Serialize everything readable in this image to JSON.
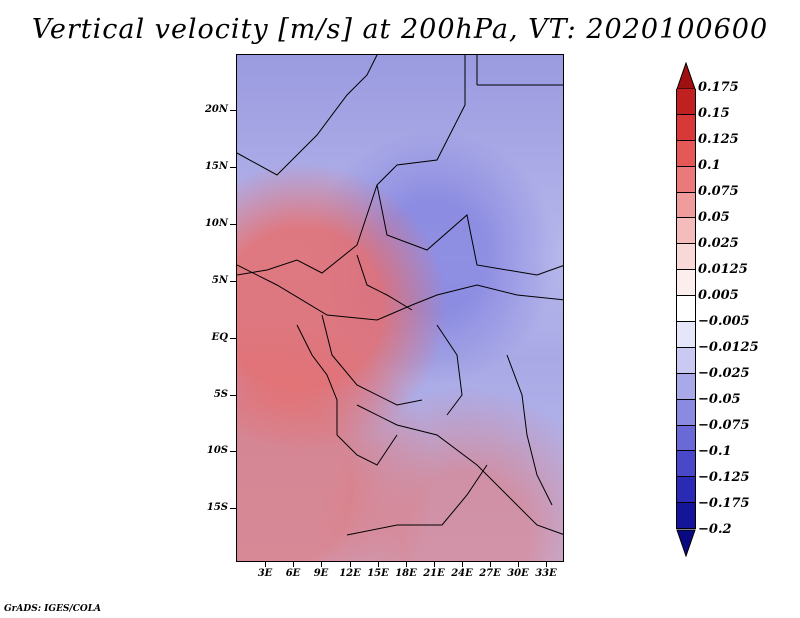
{
  "title": "Vertical velocity [m/s] at 200hPa, VT: 2020100600",
  "lat_labels": [
    "20N",
    "15N",
    "10N",
    "5N",
    "EQ",
    "5S",
    "10S",
    "15S"
  ],
  "lon_labels": [
    "3E",
    "6E",
    "9E",
    "12E",
    "15E",
    "18E",
    "21E",
    "24E",
    "27E",
    "30E",
    "33E"
  ],
  "colorbar": {
    "labels": [
      "0.175",
      "0.15",
      "0.125",
      "0.1",
      "0.075",
      "0.05",
      "0.025",
      "0.0125",
      "0.005",
      "−0.005",
      "−0.0125",
      "−0.025",
      "−0.05",
      "−0.075",
      "−0.1",
      "−0.125",
      "−0.175",
      "−0.2"
    ],
    "colors": [
      "#a01010",
      "#c02020",
      "#d83838",
      "#e45858",
      "#ea7a7a",
      "#f09c9c",
      "#f5bcbc",
      "#f9d8d8",
      "#fdeeee",
      "#ffffff",
      "#e6e6fa",
      "#c9c9f2",
      "#a9a9ea",
      "#8a8ae0",
      "#6a6ad6",
      "#4848c8",
      "#2a2ab4",
      "#15159a",
      "#0a0a80"
    ]
  },
  "credit": "GrADS: IGES/COLA"
}
